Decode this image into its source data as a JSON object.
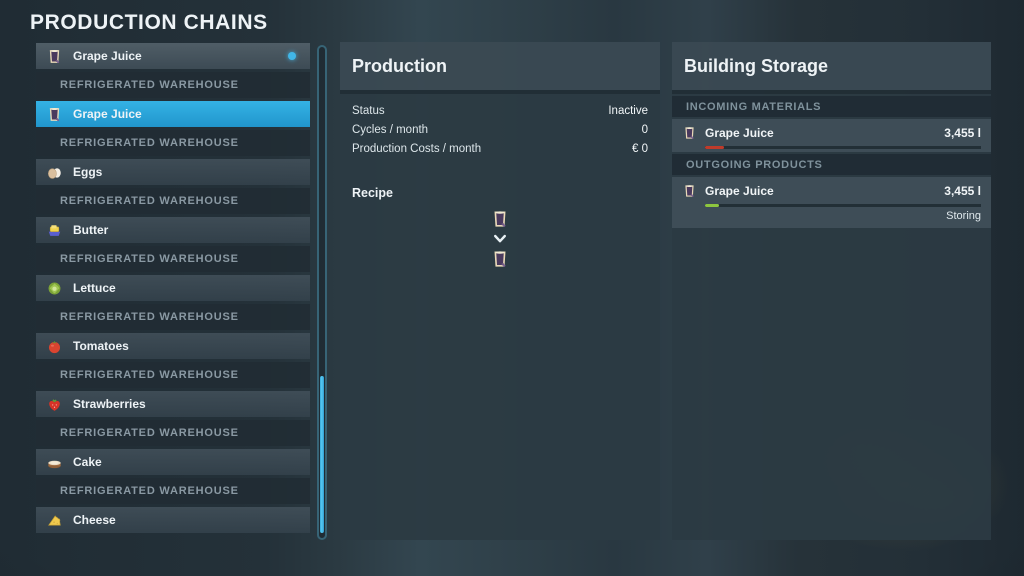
{
  "page_title": "PRODUCTION CHAINS",
  "colors": {
    "selected_row": "#2aa7db",
    "active_dot": "#41b6e8",
    "scroll_thumb": "#4cc3f0",
    "incoming_fill": "#bf3b2b",
    "outgoing_fill": "#8dc63f"
  },
  "chain_list": {
    "items": [
      {
        "type": "chain",
        "label": "Grape Juice",
        "icon": "grape-juice-icon",
        "state": "highlight",
        "active_dot": true
      },
      {
        "type": "section",
        "label": "REFRIGERATED WAREHOUSE"
      },
      {
        "type": "chain",
        "label": "Grape Juice",
        "icon": "grape-juice-icon",
        "state": "selected"
      },
      {
        "type": "section",
        "label": "REFRIGERATED WAREHOUSE"
      },
      {
        "type": "chain",
        "label": "Eggs",
        "icon": "eggs-icon"
      },
      {
        "type": "section",
        "label": "REFRIGERATED WAREHOUSE"
      },
      {
        "type": "chain",
        "label": "Butter",
        "icon": "butter-icon"
      },
      {
        "type": "section",
        "label": "REFRIGERATED WAREHOUSE"
      },
      {
        "type": "chain",
        "label": "Lettuce",
        "icon": "lettuce-icon"
      },
      {
        "type": "section",
        "label": "REFRIGERATED WAREHOUSE"
      },
      {
        "type": "chain",
        "label": "Tomatoes",
        "icon": "tomatoes-icon"
      },
      {
        "type": "section",
        "label": "REFRIGERATED WAREHOUSE"
      },
      {
        "type": "chain",
        "label": "Strawberries",
        "icon": "strawberries-icon"
      },
      {
        "type": "section",
        "label": "REFRIGERATED WAREHOUSE"
      },
      {
        "type": "chain",
        "label": "Cake",
        "icon": "cake-icon"
      },
      {
        "type": "section",
        "label": "REFRIGERATED WAREHOUSE"
      },
      {
        "type": "chain",
        "label": "Cheese",
        "icon": "cheese-icon"
      }
    ],
    "scrollbar": {
      "thumb_top_percent": 67,
      "thumb_height_percent": 32
    }
  },
  "production_panel": {
    "title": "Production",
    "stats": [
      {
        "label": "Status",
        "value": "Inactive"
      },
      {
        "label": "Cycles / month",
        "value": "0"
      },
      {
        "label": "Production Costs / month",
        "value": "€ 0"
      }
    ],
    "recipe": {
      "title": "Recipe",
      "input_icon": "grape-juice-icon",
      "arrow_icon": "chevron-down-icon",
      "output_icon": "grape-juice-icon"
    }
  },
  "storage_panel": {
    "title": "Building Storage",
    "sections": [
      {
        "header": "INCOMING MATERIALS",
        "rows": [
          {
            "icon": "grape-juice-icon",
            "label": "Grape Juice",
            "amount": "3,455 l",
            "fill_percent": 7,
            "fill_color": "#bf3b2b"
          }
        ]
      },
      {
        "header": "OUTGOING PRODUCTS",
        "rows": [
          {
            "icon": "grape-juice-icon",
            "label": "Grape Juice",
            "amount": "3,455 l",
            "fill_percent": 5,
            "fill_color": "#8dc63f",
            "status": "Storing"
          }
        ]
      }
    ]
  }
}
